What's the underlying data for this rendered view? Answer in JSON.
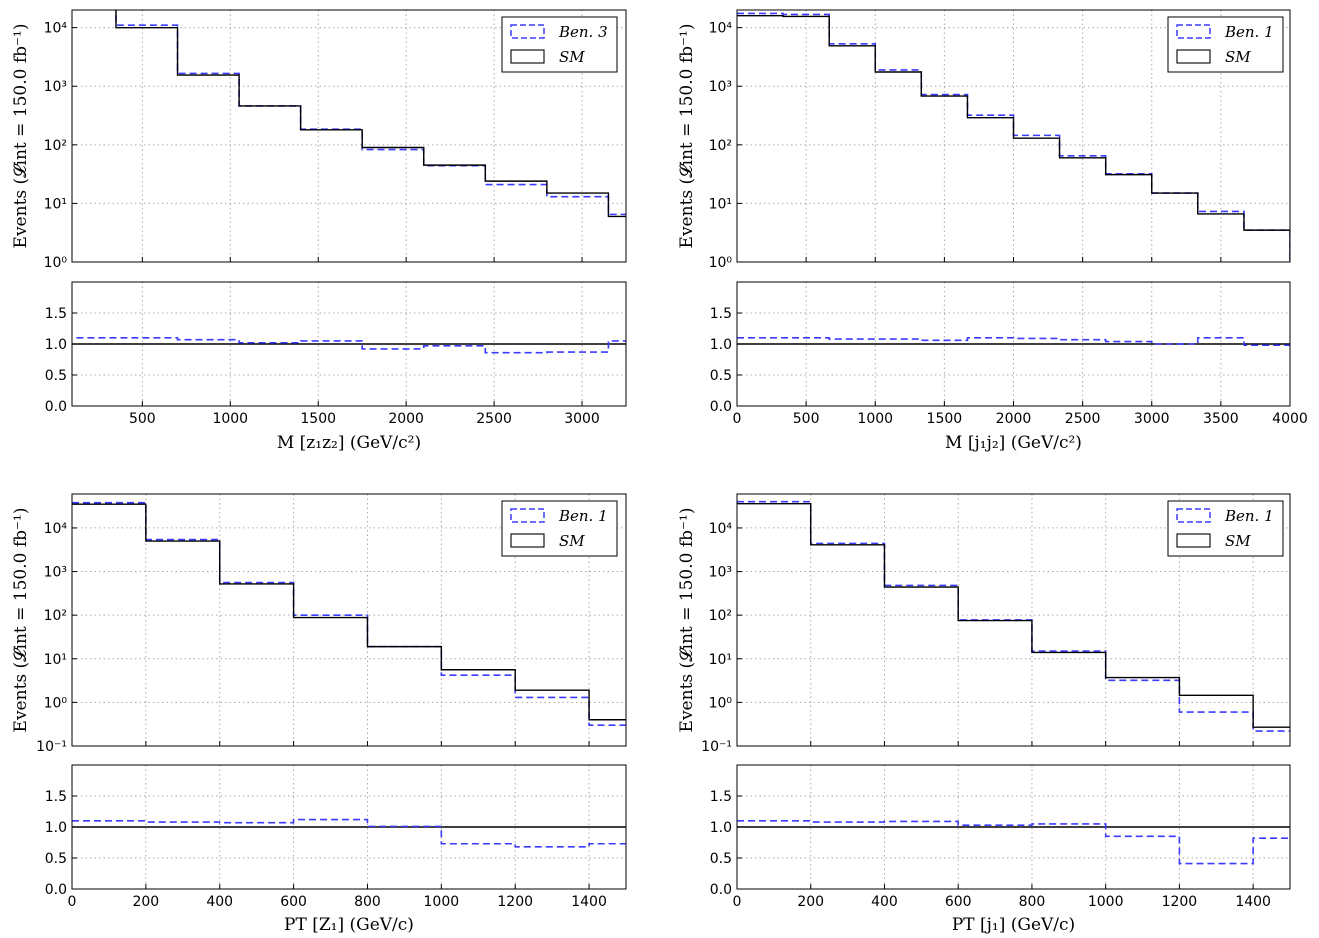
{
  "chart_data": [
    {
      "type": "line",
      "id": "p1",
      "ylabel": "Events (𝓛int = 150.0 fb⁻¹)",
      "xlabel": "M [z₁z₂] (GeV/c²)",
      "xlim": [
        100,
        3250
      ],
      "xticks": [
        500,
        1000,
        1500,
        2000,
        2500,
        3000
      ],
      "ylim": [
        1,
        20000
      ],
      "yscale": "log",
      "yticks": [
        {
          "v": 1,
          "t": "10⁰"
        },
        {
          "v": 10,
          "t": "10¹"
        },
        {
          "v": 100,
          "t": "10²"
        },
        {
          "v": 1000,
          "t": "10³"
        },
        {
          "v": 10000,
          "t": "10⁴"
        }
      ],
      "ratio_ylim": [
        0,
        2.0
      ],
      "ratio_yticks": [
        "0.0",
        "0.5",
        "1.0",
        "1.5"
      ],
      "edges": [
        0,
        350,
        700,
        1050,
        1400,
        1750,
        2100,
        2450,
        2800,
        3150,
        3500
      ],
      "series": [
        {
          "name": "Ben. 3",
          "style": "dashed",
          "color": "#3b3bff",
          "values": [
            30000,
            11000,
            1650,
            460,
            185,
            83,
            44,
            21,
            13,
            6.5
          ]
        },
        {
          "name": "SM",
          "style": "solid",
          "color": "#000000",
          "values": [
            27000,
            10000,
            1550,
            460,
            180,
            90,
            45,
            24,
            15,
            6
          ]
        }
      ],
      "ratio": [
        1.1,
        1.1,
        1.07,
        1.02,
        1.05,
        0.92,
        0.97,
        0.86,
        0.87,
        1.05
      ]
    },
    {
      "type": "line",
      "id": "p2",
      "ylabel": "Events (𝓛int = 150.0 fb⁻¹)",
      "xlabel": "M [j₁j₂] (GeV/c²)",
      "xlim": [
        0,
        4000
      ],
      "xticks": [
        0,
        500,
        1000,
        1500,
        2000,
        2500,
        3000,
        3500,
        4000
      ],
      "ylim": [
        1,
        20000
      ],
      "yscale": "log",
      "yticks": [
        {
          "v": 1,
          "t": "10⁰"
        },
        {
          "v": 10,
          "t": "10¹"
        },
        {
          "v": 100,
          "t": "10²"
        },
        {
          "v": 1000,
          "t": "10³"
        },
        {
          "v": 10000,
          "t": "10⁴"
        }
      ],
      "ratio_ylim": [
        0,
        2.0
      ],
      "ratio_yticks": [
        "0.0",
        "0.5",
        "1.0",
        "1.5"
      ],
      "edges": [
        0,
        667,
        1333,
        2000,
        2667,
        3333,
        4000
      ],
      "sub_edges": [
        0,
        333,
        667,
        1000,
        1333,
        1667,
        2000,
        2333,
        2667,
        3000,
        3333,
        3667,
        4000
      ],
      "series": [
        {
          "name": "Ben. 1",
          "style": "dashed",
          "color": "#3b3bff",
          "values": [
            17500,
            16800,
            5300,
            1900,
            720,
            320,
            145,
            65,
            32,
            15,
            7.3,
            3.5
          ]
        },
        {
          "name": "SM",
          "style": "solid",
          "color": "#000000",
          "values": [
            16000,
            15500,
            4900,
            1750,
            680,
            290,
            130,
            60,
            31,
            15,
            6.6,
            3.5
          ]
        }
      ],
      "ratio": [
        1.1,
        1.1,
        1.08,
        1.08,
        1.06,
        1.1,
        1.09,
        1.07,
        1.04,
        1.0,
        1.1,
        0.98
      ]
    },
    {
      "type": "line",
      "id": "p3",
      "ylabel": "Events (𝓛int = 150.0 fb⁻¹)",
      "xlabel": "PT [Z₁] (GeV/c)",
      "xlim": [
        0,
        1500
      ],
      "xticks": [
        0,
        200,
        400,
        600,
        800,
        1000,
        1200,
        1400
      ],
      "ylim": [
        0.1,
        60000
      ],
      "yscale": "log",
      "yticks": [
        {
          "v": 0.1,
          "t": "10⁻¹"
        },
        {
          "v": 1,
          "t": "10⁰"
        },
        {
          "v": 10,
          "t": "10¹"
        },
        {
          "v": 100,
          "t": "10²"
        },
        {
          "v": 1000,
          "t": "10³"
        },
        {
          "v": 10000,
          "t": "10⁴"
        }
      ],
      "ratio_ylim": [
        0,
        2.0
      ],
      "ratio_yticks": [
        "0.0",
        "0.5",
        "1.0",
        "1.5"
      ],
      "edges": [
        0,
        200,
        400,
        600,
        800,
        1000,
        1200,
        1400,
        1600
      ],
      "series": [
        {
          "name": "Ben. 1",
          "style": "dashed",
          "color": "#3b3bff",
          "values": [
            38000,
            5400,
            560,
            100,
            19,
            4.2,
            1.3,
            0.3
          ]
        },
        {
          "name": "SM",
          "style": "solid",
          "color": "#000000",
          "values": [
            35000,
            5000,
            520,
            88,
            19,
            5.6,
            1.9,
            0.4
          ]
        }
      ],
      "ratio": [
        1.1,
        1.08,
        1.07,
        1.12,
        1.01,
        0.73,
        0.68,
        0.73
      ]
    },
    {
      "type": "line",
      "id": "p4",
      "ylabel": "Events (𝓛int = 150.0 fb⁻¹)",
      "xlabel": "PT [j₁] (GeV/c)",
      "xlim": [
        0,
        1500
      ],
      "xticks": [
        0,
        200,
        400,
        600,
        800,
        1000,
        1200,
        1400
      ],
      "ylim": [
        0.1,
        60000
      ],
      "yscale": "log",
      "yticks": [
        {
          "v": 0.1,
          "t": "10⁻¹"
        },
        {
          "v": 1,
          "t": "10⁰"
        },
        {
          "v": 10,
          "t": "10¹"
        },
        {
          "v": 100,
          "t": "10²"
        },
        {
          "v": 1000,
          "t": "10³"
        },
        {
          "v": 10000,
          "t": "10⁴"
        }
      ],
      "ratio_ylim": [
        0,
        2.0
      ],
      "ratio_yticks": [
        "0.0",
        "0.5",
        "1.0",
        "1.5"
      ],
      "edges": [
        0,
        200,
        400,
        600,
        800,
        1000,
        1200,
        1400,
        1600
      ],
      "series": [
        {
          "name": "Ben. 1",
          "style": "dashed",
          "color": "#3b3bff",
          "values": [
            40000,
            4400,
            480,
            78,
            15,
            3.2,
            0.6,
            0.22
          ]
        },
        {
          "name": "SM",
          "style": "solid",
          "color": "#000000",
          "values": [
            36000,
            4100,
            440,
            75,
            14,
            3.7,
            1.45,
            0.27
          ]
        }
      ],
      "ratio": [
        1.1,
        1.08,
        1.09,
        1.03,
        1.05,
        0.85,
        0.41,
        0.82
      ]
    }
  ]
}
